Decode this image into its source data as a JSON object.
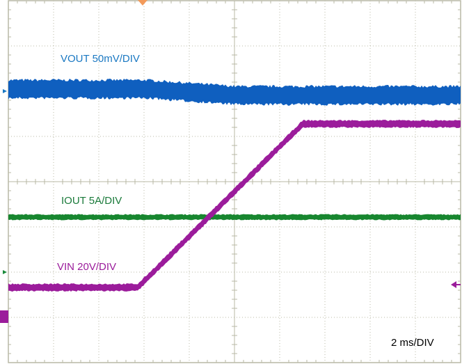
{
  "labels": {
    "vout": "VOUT 50mV/DIV",
    "iout": "IOUT 5A/DIV",
    "vin": "VIN 20V/DIV",
    "timebase": "2 ms/DIV"
  }
}
